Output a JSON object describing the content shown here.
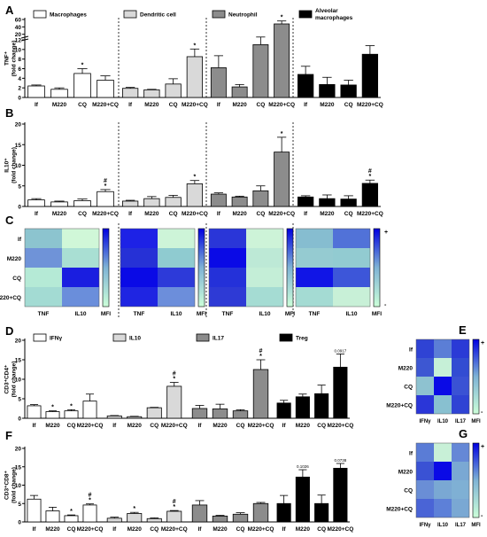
{
  "panel_letters": [
    "A",
    "B",
    "C",
    "D",
    "E",
    "F",
    "G"
  ],
  "groups": [
    "If",
    "M220",
    "CQ",
    "M220+CQ"
  ],
  "colors": {
    "macrophages": "#ffffff",
    "dendritic": "#d9d9d9",
    "neutrophil": "#8c8c8c",
    "alveolar": "#000000",
    "ifn": "#ffffff",
    "il10": "#d9d9d9",
    "il17": "#8c8c8c",
    "treg": "#000000"
  },
  "chart_data": [
    {
      "id": "A",
      "type": "bar",
      "ylabel": "TNF⁺\n(fold change)",
      "yticks": [
        "0",
        "2",
        "4",
        "6",
        "8",
        "10",
        "12",
        "20",
        "40",
        "60"
      ],
      "broken_axis": true,
      "legend": [
        "Macrophages",
        "Dendritic cell",
        "Neutrophil",
        "Alveolar macrophages"
      ],
      "categories": [
        "If",
        "M220",
        "CQ",
        "M220+CQ"
      ],
      "series": [
        {
          "name": "Macrophages",
          "values": [
            2.4,
            1.7,
            5.0,
            3.6
          ],
          "errors": [
            0.2,
            0.3,
            1.0,
            0.9
          ],
          "marks": [
            "",
            "",
            "*",
            ""
          ]
        },
        {
          "name": "Dendritic cell",
          "values": [
            1.9,
            1.6,
            2.8,
            8.5
          ],
          "errors": [
            0.2,
            0.1,
            1.1,
            1.6
          ],
          "marks": [
            "",
            "",
            "",
            "*"
          ]
        },
        {
          "name": "Neutrophil",
          "values": [
            6.2,
            2.2,
            11.0,
            48
          ],
          "errors": [
            2.5,
            0.5,
            1.5,
            8
          ],
          "marks": [
            "",
            "",
            "",
            "*"
          ]
        },
        {
          "name": "Alveolar macrophages",
          "values": [
            4.8,
            2.7,
            2.6,
            9.0
          ],
          "errors": [
            1.7,
            1.5,
            1.0,
            1.8
          ],
          "marks": [
            "",
            "",
            "",
            ""
          ]
        }
      ]
    },
    {
      "id": "B",
      "type": "bar",
      "ylabel": "IL10⁺\n(fold change)",
      "yticks": [
        "0",
        "5",
        "10",
        "15",
        "20"
      ],
      "ylim": [
        0,
        20
      ],
      "categories": [
        "If",
        "M220",
        "CQ",
        "M220+CQ"
      ],
      "series": [
        {
          "name": "Macrophages",
          "values": [
            1.6,
            1.1,
            1.4,
            3.6
          ],
          "errors": [
            0.3,
            0.2,
            0.4,
            0.5
          ],
          "marks": [
            "",
            "",
            "",
            "#\n*"
          ]
        },
        {
          "name": "Dendritic cell",
          "values": [
            1.3,
            1.9,
            2.2,
            5.5
          ],
          "errors": [
            0.2,
            0.5,
            0.5,
            0.8
          ],
          "marks": [
            "",
            "",
            "",
            "*"
          ]
        },
        {
          "name": "Neutrophil",
          "values": [
            3.0,
            2.3,
            3.8,
            13.2
          ],
          "errors": [
            0.3,
            0.2,
            1.2,
            3.6
          ],
          "marks": [
            "",
            "",
            "",
            "*"
          ]
        },
        {
          "name": "Alveolar macrophages",
          "values": [
            2.3,
            1.9,
            1.8,
            5.6
          ],
          "errors": [
            0.3,
            0.9,
            0.8,
            0.8
          ],
          "marks": [
            "",
            "",
            "",
            "#\n*"
          ]
        }
      ]
    },
    {
      "id": "C",
      "type": "heatmap",
      "rows": [
        "If",
        "M220",
        "CQ",
        "M220+CQ"
      ],
      "columns": [
        "TNF",
        "IL10",
        "MFI"
      ],
      "scale_labels": [
        "+",
        "-"
      ],
      "blocks": [
        {
          "name": "Macrophages",
          "cells": [
            [
              "#8cc4cf",
              "#d0f7d8"
            ],
            [
              "#6f93d8",
              "#a9dfd3"
            ],
            [
              "#b5ead6",
              "#1a1ee0"
            ],
            [
              "#a3dbd3",
              "#6a8edb"
            ]
          ]
        },
        {
          "name": "Dendritic cell",
          "cells": [
            [
              "#1d22e6",
              "#cdf4d8"
            ],
            [
              "#2631d6",
              "#8fcbd0"
            ],
            [
              "#0a0ae6",
              "#2d3ad9"
            ],
            [
              "#1f25e2",
              "#6c8edb"
            ]
          ]
        },
        {
          "name": "Neutrophil",
          "cells": [
            [
              "#2a36d8",
              "#cdf3d8"
            ],
            [
              "#0a0ae6",
              "#bde9d6"
            ],
            [
              "#2431d9",
              "#c4eed7"
            ],
            [
              "#2e3ad5",
              "#a5dcd3"
            ]
          ]
        },
        {
          "name": "Alveolar macrophages",
          "cells": [
            [
              "#86bdd0",
              "#5172d8"
            ],
            [
              "#95cbd1",
              "#92cbd1"
            ],
            [
              "#1115e6",
              "#3d56d9"
            ],
            [
              "#a4dbd3",
              "#c8f0d7"
            ]
          ]
        }
      ]
    },
    {
      "id": "D",
      "type": "bar",
      "ylabel": "CD3⁺CD4⁺\n(fold change)",
      "yticks": [
        "0",
        "5",
        "10",
        "15",
        "20"
      ],
      "ylim": [
        0,
        20
      ],
      "legend": [
        "IFNγ",
        "IL10",
        "IL17",
        "Treg"
      ],
      "categories": [
        "If",
        "M220",
        "CQ",
        "M220+CQ"
      ],
      "series": [
        {
          "name": "IFNγ",
          "values": [
            3.2,
            1.7,
            1.9,
            4.4
          ],
          "errors": [
            0.3,
            0.2,
            0.3,
            1.8
          ],
          "marks": [
            "",
            "*",
            "*",
            ""
          ]
        },
        {
          "name": "IL10",
          "values": [
            0.6,
            0.4,
            2.7,
            8.2
          ],
          "errors": [
            0.1,
            0.1,
            0.1,
            1.0
          ],
          "marks": [
            "",
            "",
            "",
            "#\n*"
          ]
        },
        {
          "name": "IL17",
          "values": [
            2.5,
            2.4,
            1.9,
            12.5
          ],
          "errors": [
            0.8,
            1.2,
            0.3,
            2.5
          ],
          "marks": [
            "",
            "",
            "",
            "#\n*"
          ]
        },
        {
          "name": "Treg",
          "values": [
            3.9,
            5.5,
            6.3,
            13.1
          ],
          "errors": [
            0.7,
            0.7,
            2.2,
            3.4
          ],
          "marks": [
            "",
            "",
            "",
            "0.0917"
          ]
        }
      ]
    },
    {
      "id": "E",
      "type": "heatmap",
      "rows": [
        "If",
        "M220",
        "CQ",
        "M220+CQ"
      ],
      "columns": [
        "IFNγ",
        "IL10",
        "IL17",
        "MFI"
      ],
      "scale_labels": [
        "+",
        "-"
      ],
      "cells": [
        [
          "#2f43d4",
          "#5b7ed6",
          "#2a3ad6"
        ],
        [
          "#3d57d2",
          "#c6f0d7",
          "#324cd2"
        ],
        [
          "#8ec2d0",
          "#0a0ae6",
          "#3a52d4"
        ],
        [
          "#2a36d8",
          "#88c0d0",
          "#2f43d4"
        ]
      ]
    },
    {
      "id": "F",
      "type": "bar",
      "ylabel": "CD3⁺CD8⁺\n(fold change)",
      "yticks": [
        "0",
        "5",
        "10",
        "15",
        "20"
      ],
      "ylim": [
        0,
        20
      ],
      "categories": [
        "If",
        "M220",
        "CQ",
        "M220+CQ"
      ],
      "series": [
        {
          "name": "IFNγ",
          "values": [
            6.2,
            3.0,
            1.7,
            4.6
          ],
          "errors": [
            1.0,
            1.0,
            0.2,
            0.3
          ],
          "marks": [
            "",
            "",
            "*",
            "#\n*"
          ]
        },
        {
          "name": "IL10",
          "values": [
            1.0,
            2.3,
            0.9,
            2.9
          ],
          "errors": [
            0.3,
            0.3,
            0.2,
            0.2
          ],
          "marks": [
            "",
            "*",
            "",
            "#\n*"
          ]
        },
        {
          "name": "IL17",
          "values": [
            4.6,
            1.6,
            2.1,
            5.0
          ],
          "errors": [
            1.2,
            0.2,
            0.4,
            0.3
          ],
          "marks": [
            "",
            "",
            "",
            ""
          ]
        },
        {
          "name": "Treg",
          "values": [
            5.0,
            12.2,
            5.0,
            14.6
          ],
          "errors": [
            2.2,
            2.0,
            2.3,
            1.3
          ],
          "marks": [
            "",
            "0.1026",
            "",
            "0.0738"
          ]
        }
      ]
    },
    {
      "id": "G",
      "type": "heatmap",
      "rows": [
        "If",
        "M220",
        "CQ",
        "M220+CQ"
      ],
      "columns": [
        "IFNγ",
        "IL10",
        "IL17",
        "MFI"
      ],
      "scale_labels": [
        "+",
        "-"
      ],
      "cells": [
        [
          "#5a7cd6",
          "#c8f0d7",
          "#6588d6"
        ],
        [
          "#3a52d4",
          "#0a0ae6",
          "#7aa8d3"
        ],
        [
          "#6a8ed6",
          "#7aa8d3",
          "#7fb0d4"
        ],
        [
          "#4a64d6",
          "#5d80d8",
          "#7aa8d3"
        ]
      ]
    }
  ]
}
